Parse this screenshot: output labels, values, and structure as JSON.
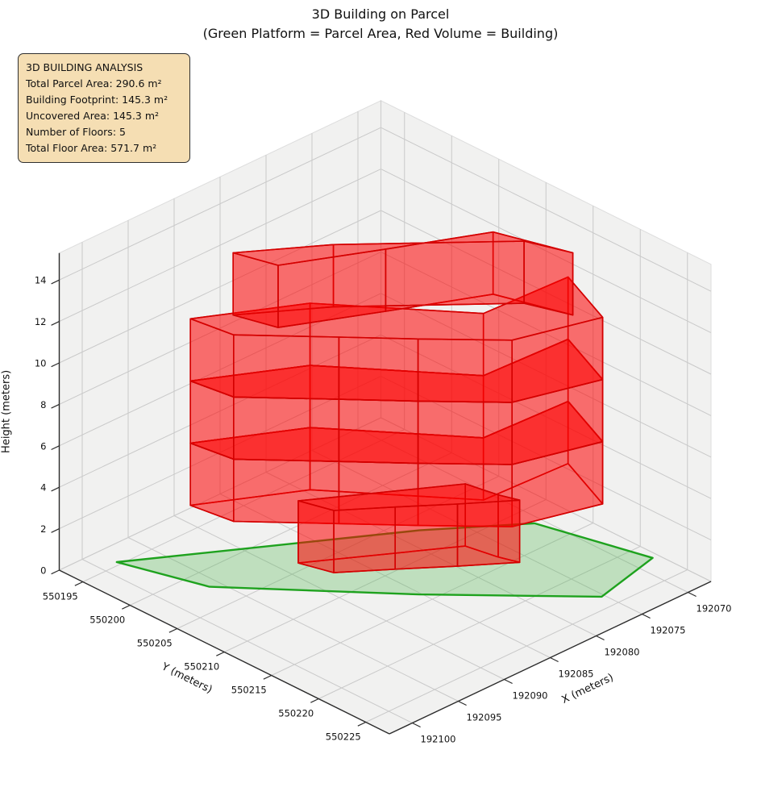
{
  "title": "3D Building on Parcel",
  "subtitle": "(Green Platform = Parcel Area, Red Volume = Building)",
  "annotation": {
    "lines": [
      "3D BUILDING ANALYSIS",
      "Total Parcel Area: 290.6 m²",
      "Building Footprint: 145.3 m²",
      "Uncovered Area: 145.3 m²",
      "Number of Floors: 5",
      "Total Floor Area: 571.7 m²"
    ]
  },
  "chart_data": {
    "type": "3d-extruded-polygon-plot",
    "legend_note": "Green Platform = Parcel Area, Red Volume = Building",
    "axes": {
      "x": {
        "label": "X (meters)",
        "ticks": [
          192070,
          192075,
          192080,
          192085,
          192090,
          192095,
          192100
        ],
        "range": [
          192067.5,
          192102.5
        ]
      },
      "y": {
        "label": "Y (meters)",
        "ticks": [
          550195,
          550200,
          550205,
          550210,
          550215,
          550220,
          550225
        ],
        "range": [
          550192.5,
          550227.5
        ]
      },
      "z": {
        "label": "Height (meters)",
        "ticks": [
          0,
          2,
          4,
          6,
          8,
          10,
          12,
          14
        ],
        "range": [
          0,
          15.3
        ]
      }
    },
    "parcel": {
      "area_m2": 290.6,
      "z": 0,
      "outline": [
        [
          192098.4,
          550194.6
        ],
        [
          192078.0,
          550206.8
        ],
        [
          192070.8,
          550212.0
        ],
        [
          192068.1,
          550221.9
        ],
        [
          192075.3,
          550223.5
        ],
        [
          192085.2,
          550213.8
        ],
        [
          192096.0,
          550202.1
        ]
      ]
    },
    "building": {
      "num_floors": 5,
      "floor_height_m": 3,
      "total_height_m": 15,
      "footprint_area_m2": 145.3,
      "uncovered_area_m2": 145.3,
      "total_floor_area_m2": 571.7,
      "footprints": {
        "base": [
          [
            192088.4,
            550204.1
          ],
          [
            192087.5,
            550207.0
          ],
          [
            192083.7,
            550209.8
          ],
          [
            192079.9,
            550212.7
          ],
          [
            192076.0,
            550215.5
          ],
          [
            192076.6,
            550213.8
          ],
          [
            192077.2,
            550210.9
          ]
        ],
        "main": [
          [
            192094.9,
            550199.0
          ],
          [
            192094.3,
            550203.0
          ],
          [
            192088.7,
            550208.7
          ],
          [
            192084.5,
            550213.0
          ],
          [
            192079.4,
            550218.0
          ],
          [
            192071.8,
            550220.2
          ],
          [
            192069.2,
            550214.0
          ],
          [
            192078.0,
            550213.6
          ],
          [
            192086.5,
            550203.5
          ]
        ],
        "top": [
          [
            192092.1,
            550200.8
          ],
          [
            192091.0,
            550204.5
          ],
          [
            192083.2,
            550208.3
          ],
          [
            192075.3,
            550212.0
          ],
          [
            192073.2,
            550218.4
          ],
          [
            192074.6,
            550214.6
          ],
          [
            192085.6,
            550205.1
          ]
        ]
      },
      "floors": [
        {
          "level": 1,
          "z0": 0,
          "z1": 3,
          "footprint": "base"
        },
        {
          "level": 2,
          "z0": 3,
          "z1": 6,
          "footprint": "main"
        },
        {
          "level": 3,
          "z0": 6,
          "z1": 9,
          "footprint": "main"
        },
        {
          "level": 4,
          "z0": 9,
          "z1": 12,
          "footprint": "main"
        },
        {
          "level": 5,
          "z0": 12,
          "z1": 15,
          "footprint": "top"
        }
      ]
    },
    "colors": {
      "building_face": "#ff0000",
      "building_edge": "#d40000",
      "parcel_face": "#4bb54b",
      "parcel_edge": "#1ea21e",
      "pane": "#f1f1f0",
      "grid": "#c9c9c9",
      "axis_line": "#2b2b2b",
      "tick_text": "#111111",
      "annotation_bg": "#f5deb3",
      "annotation_border": "#2f2f2f"
    }
  }
}
